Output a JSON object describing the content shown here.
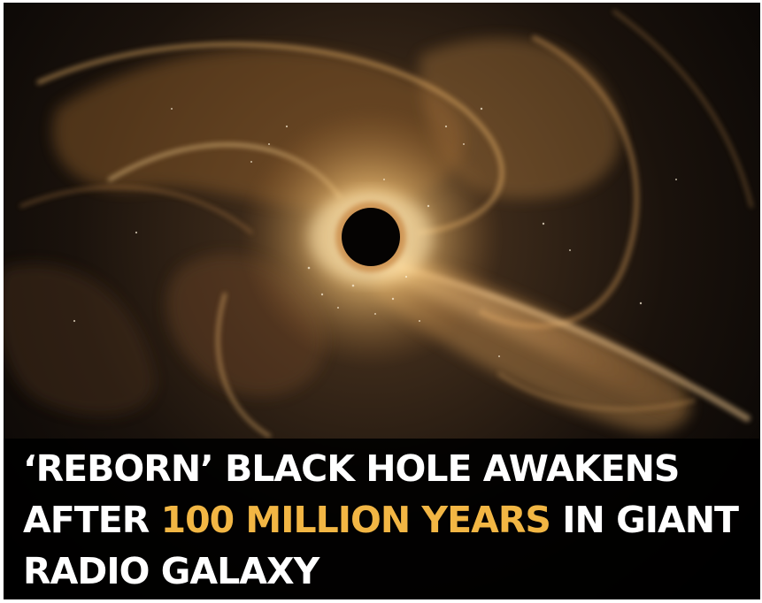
{
  "headline": {
    "line1": "‘REBORN’ BLACK HOLE AWAKENS",
    "line2_before": "AFTER ",
    "line2_highlight": "100 MILLION YEARS",
    "line2_after": " IN GIANT",
    "line3": "RADIO GALAXY"
  },
  "image": {
    "subject": "black-hole-illustration",
    "colors": {
      "background": "#0a0706",
      "glow": "#f3c57a",
      "highlight_text": "#f2b644",
      "text": "#ffffff"
    }
  }
}
